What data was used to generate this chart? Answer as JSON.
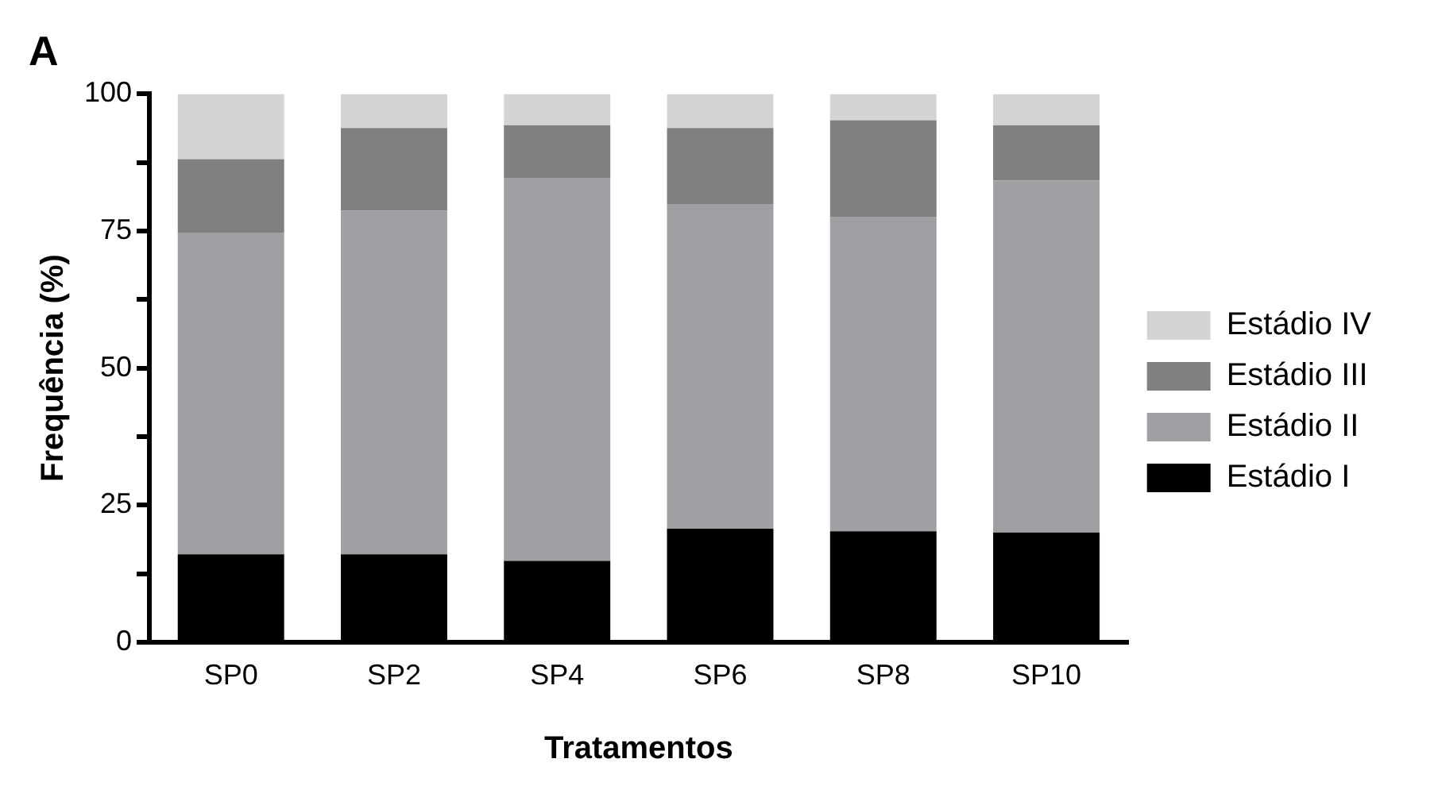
{
  "chart_data": {
    "type": "bar",
    "title": "A",
    "xlabel": "Tratamentos",
    "ylabel": "Frequência (%)",
    "stacked": true,
    "legend": "right",
    "grid": false,
    "categories": [
      "SP0",
      "SP2",
      "SP4",
      "SP6",
      "SP8",
      "SP10"
    ],
    "series": [
      {
        "name": "Estádio I",
        "color": "#000000",
        "values": [
          16,
          16,
          14.8,
          20.7,
          20.2,
          20
        ]
      },
      {
        "name": "Estádio II",
        "color": "#a0a0a4",
        "values": [
          58.7,
          62.7,
          69.9,
          59.1,
          57.3,
          64.2
        ]
      },
      {
        "name": "Estádio III",
        "color": "#808080",
        "values": [
          13.4,
          15.1,
          9.6,
          14,
          17.7,
          10.1
        ]
      },
      {
        "name": "Estádio IV",
        "color": "#d4d4d4",
        "values": [
          11.9,
          6.2,
          5.7,
          6.2,
          4.8,
          5.7
        ]
      }
    ],
    "ylim": [
      0,
      100
    ],
    "yticks": [
      0,
      {
        "value": 12.5,
        "label": null
      },
      25,
      {
        "value": 37.5,
        "label": null
      },
      50,
      {
        "value": 62.5,
        "label": null
      },
      75,
      {
        "value": 87.5,
        "label": null
      },
      100
    ]
  }
}
